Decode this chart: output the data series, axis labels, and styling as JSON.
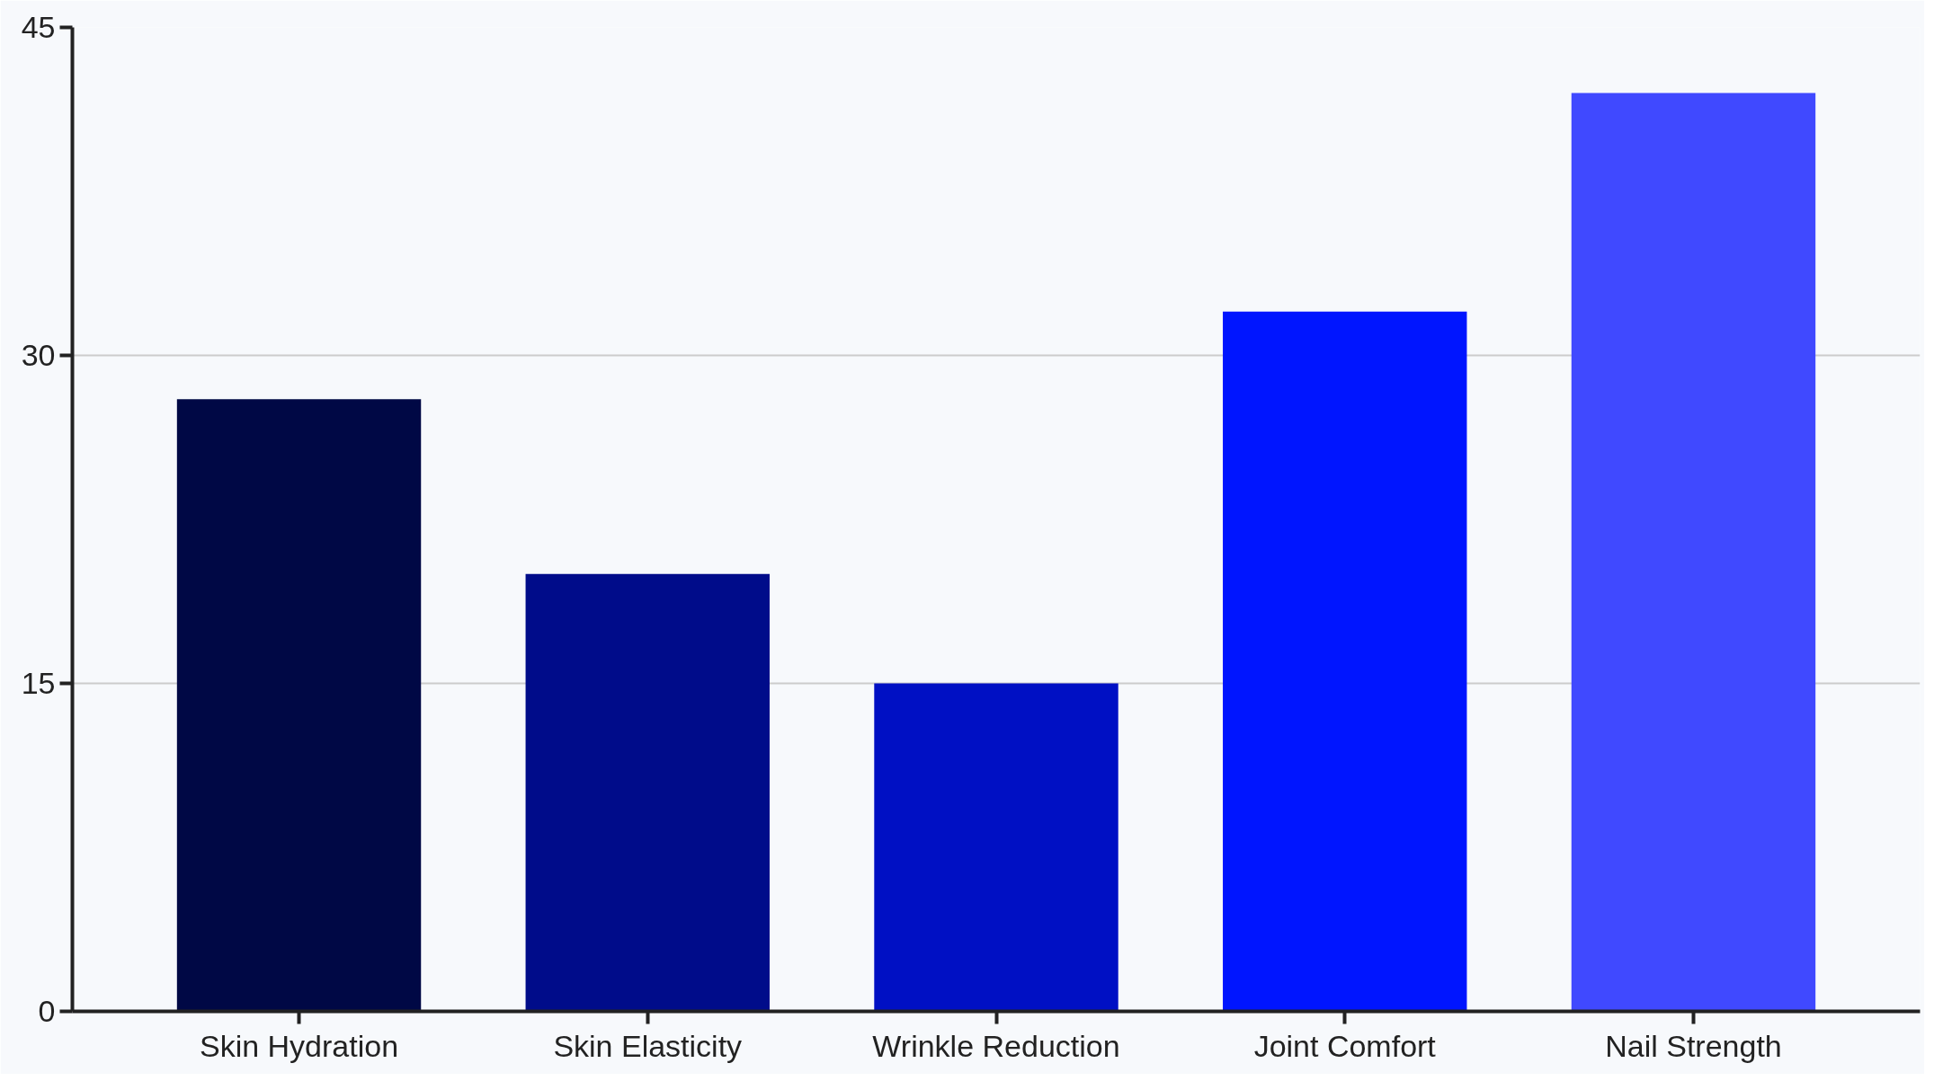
{
  "chart_data": {
    "type": "bar",
    "categories": [
      "Skin Hydration",
      "Skin Elasticity",
      "Wrinkle Reduction",
      "Joint Comfort",
      "Nail Strength"
    ],
    "values": [
      28,
      20,
      15,
      32,
      42
    ],
    "colors": [
      "#000845",
      "#000c8a",
      "#0010c4",
      "#0015ff",
      "#4049ff"
    ],
    "ylim": [
      0,
      45
    ],
    "yticks": [
      0,
      15,
      30,
      45
    ],
    "grid": "y"
  }
}
